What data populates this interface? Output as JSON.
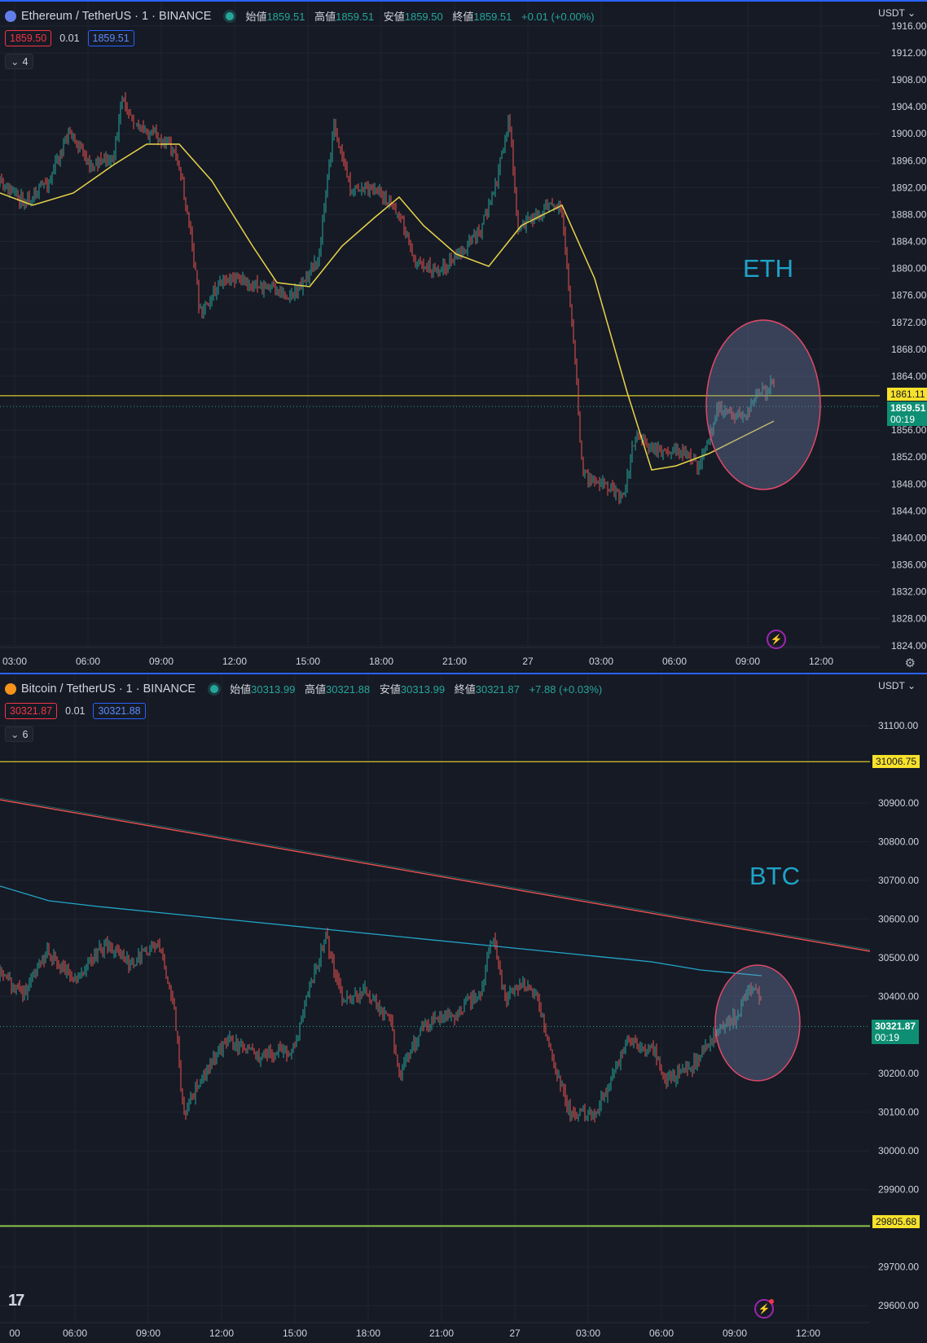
{
  "eth": {
    "title": "Ethereum / TetherUS · 1 · BINANCE",
    "ohlc": {
      "open_label": "始値",
      "open": "1859.51",
      "high_label": "高値",
      "high": "1859.51",
      "low_label": "安値",
      "low": "1859.50",
      "close_label": "終値",
      "close": "1859.51",
      "change": "+0.01 (+0.00%)"
    },
    "bid": "1859.50",
    "spread": "0.01",
    "ask": "1859.51",
    "indicator_count": "4",
    "currency": "USDT",
    "y_ticks": [
      "1916.00",
      "1912.00",
      "1908.00",
      "1904.00",
      "1900.00",
      "1896.00",
      "1892.00",
      "1888.00",
      "1884.00",
      "1880.00",
      "1876.00",
      "1872.00",
      "1868.00",
      "1864.00",
      "1856.00",
      "1852.00",
      "1848.00",
      "1844.00",
      "1840.00",
      "1836.00",
      "1832.00",
      "1828.00",
      "1824.00"
    ],
    "x_ticks": [
      "03:00",
      "06:00",
      "09:00",
      "12:00",
      "15:00",
      "18:00",
      "21:00",
      "27",
      "03:00",
      "06:00",
      "09:00",
      "12:00"
    ],
    "level_tag": "1861.11",
    "price_tag": "1859.51",
    "countdown": "00:19",
    "annotation": "ETH",
    "colors": {
      "ma": "#e8d44a",
      "level": "#d8c82c",
      "circle": "#e0486a"
    }
  },
  "btc": {
    "title": "Bitcoin / TetherUS · 1 · BINANCE",
    "ohlc": {
      "open_label": "始値",
      "open": "30313.99",
      "high_label": "高値",
      "high": "30321.88",
      "low_label": "安値",
      "low": "30313.99",
      "close_label": "終値",
      "close": "30321.87",
      "change": "+7.88 (+0.03%)"
    },
    "bid": "30321.87",
    "spread": "0.01",
    "ask": "30321.88",
    "indicator_count": "6",
    "currency": "USDT",
    "y_ticks": [
      "31100.00",
      "30900.00",
      "30800.00",
      "30700.00",
      "30600.00",
      "30500.00",
      "30400.00",
      "30200.00",
      "30100.00",
      "30000.00",
      "29900.00",
      "29700.00",
      "29600.00"
    ],
    "x_ticks": [
      "00",
      "06:00",
      "09:00",
      "12:00",
      "15:00",
      "18:00",
      "21:00",
      "27",
      "03:00",
      "06:00",
      "09:00",
      "12:00"
    ],
    "level_top_tag": "31006.75",
    "level_bottom_tag": "29805.68",
    "price_tag": "30321.87",
    "countdown": "00:19",
    "annotation": "BTC",
    "colors": {
      "trendline": "#e05050",
      "ma": "#22a6c8",
      "level_top": "#d8c82c",
      "level_bottom": "#8bc34a",
      "circle": "#e0486a"
    }
  }
}
